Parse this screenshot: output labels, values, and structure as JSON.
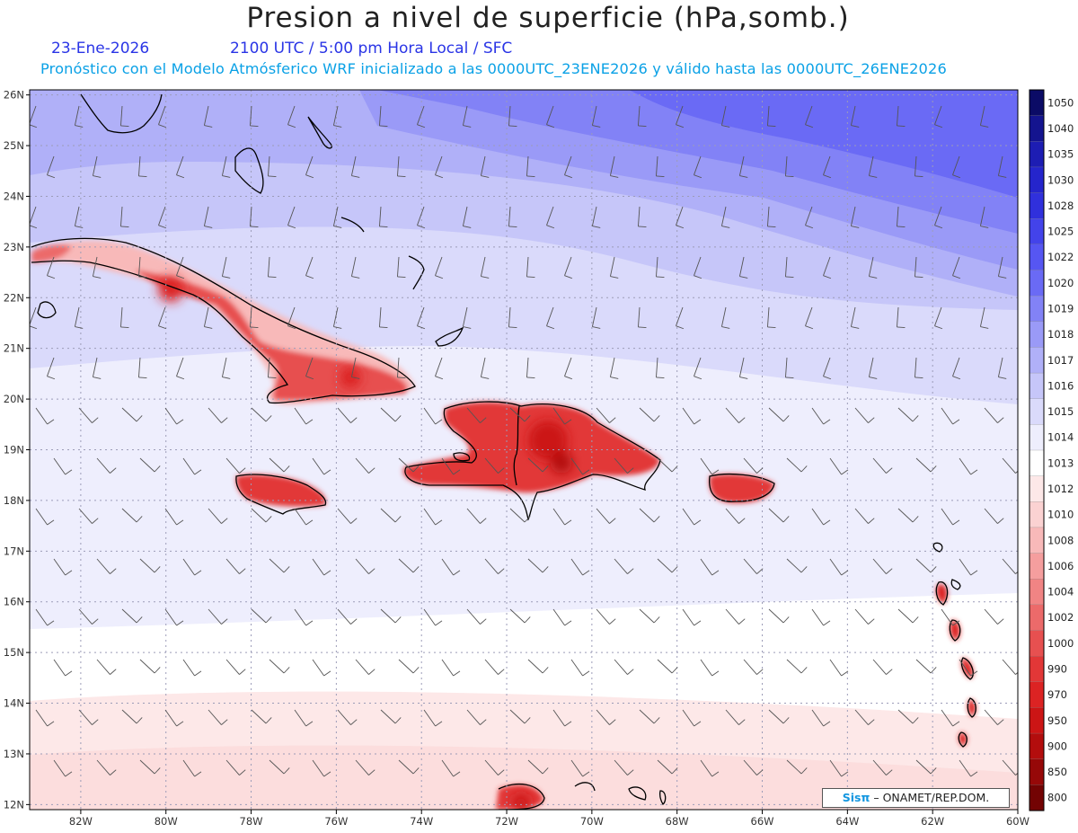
{
  "header": {
    "title": "Presion a nivel de superficie (hPa,somb.)",
    "date": "23-Ene-2026",
    "time": "2100 UTC / 5:00 pm Hora Local / SFC",
    "subtitle": "Pronóstico con el Modelo Atmósferico WRF inicializado a las 0000UTC_23ENE2026 y válido hasta las  0000UTC_26ENE2026"
  },
  "map": {
    "lon_range": [
      -83.2,
      -60.0
    ],
    "lat_range": [
      11.9,
      26.1
    ],
    "lon_labels": [
      "82W",
      "80W",
      "78W",
      "76W",
      "74W",
      "72W",
      "70W",
      "68W",
      "66W",
      "64W",
      "62W",
      "60W"
    ],
    "lat_labels": [
      "26N",
      "25N",
      "24N",
      "23N",
      "22N",
      "21N",
      "20N",
      "19N",
      "18N",
      "17N",
      "16N",
      "15N",
      "14N",
      "13N",
      "12N"
    ]
  },
  "colorbar": {
    "levels": [
      "1050",
      "1040",
      "1035",
      "1030",
      "1028",
      "1025",
      "1022",
      "1020",
      "1019",
      "1018",
      "1017",
      "1016",
      "1015",
      "1014",
      "1013",
      "1012",
      "1010",
      "1008",
      "1006",
      "1004",
      "1002",
      "1000",
      "990",
      "970",
      "950",
      "900",
      "850",
      "800"
    ],
    "colors": [
      "#0b0b66",
      "#14148f",
      "#1d1db3",
      "#2525cc",
      "#3030dc",
      "#4343ea",
      "#5656f2",
      "#6a6af5",
      "#8282f6",
      "#9a9af7",
      "#b0b0f8",
      "#c6c6f9",
      "#dadafb",
      "#eeeefd",
      "#ffffff",
      "#fde8e8",
      "#fbd2d2",
      "#f8b9b9",
      "#f59e9e",
      "#f18484",
      "#ec6a6a",
      "#e75050",
      "#e23737",
      "#dc2323",
      "#cc1515",
      "#b30d0d",
      "#960808",
      "#730303"
    ]
  },
  "credit": {
    "logo": "Sisπ",
    "text": " – ONAMET/REP.DOM."
  }
}
